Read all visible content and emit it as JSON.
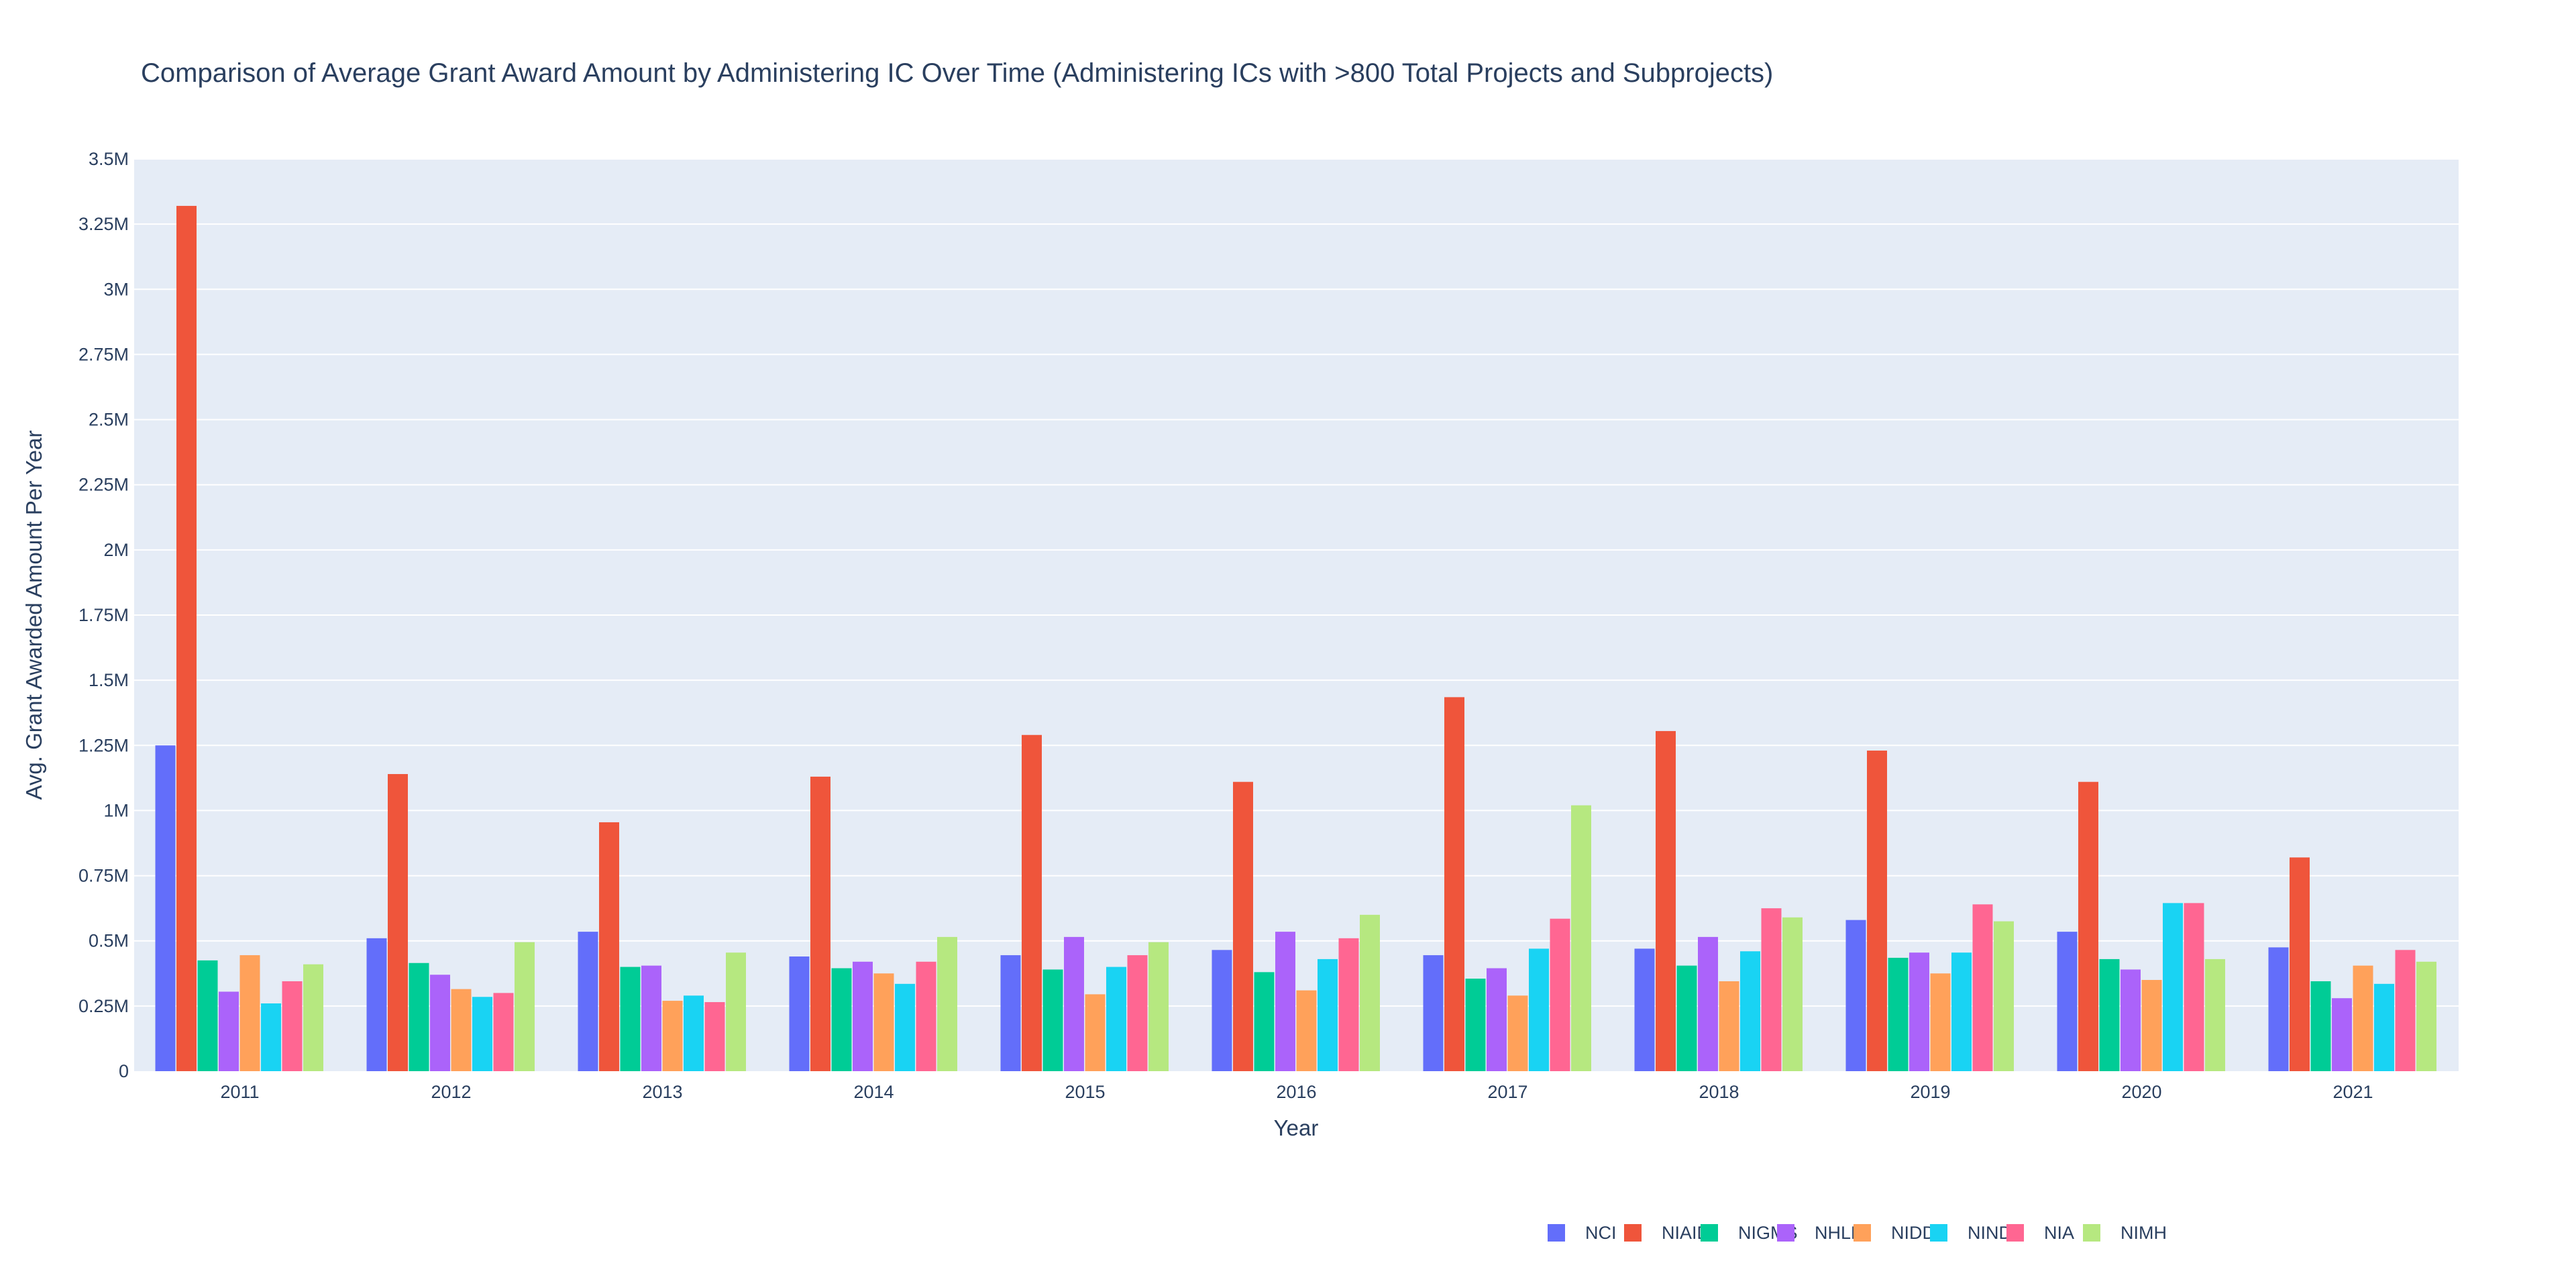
{
  "colors": {
    "plot_bg": "#e5ecf6",
    "grid": "#ffffff",
    "text": "#2a3f5f",
    "page_bg": "#ffffff"
  },
  "chart_data": {
    "type": "bar",
    "title": "Comparison of Average Grant Award Amount by Administering IC Over Time (Administering ICs with >800 Total Projects and Subprojects)",
    "xlabel": "Year",
    "ylabel": "Avg. Grant Awarded Amount Per Year",
    "ylim": [
      0,
      3500000
    ],
    "grid": true,
    "legend_position": "bottom-right",
    "categories": [
      "2011",
      "2012",
      "2013",
      "2014",
      "2015",
      "2016",
      "2017",
      "2018",
      "2019",
      "2020",
      "2021"
    ],
    "y_ticks": [
      {
        "value": 0,
        "label": "0"
      },
      {
        "value": 250000,
        "label": "0.25M"
      },
      {
        "value": 500000,
        "label": "0.5M"
      },
      {
        "value": 750000,
        "label": "0.75M"
      },
      {
        "value": 1000000,
        "label": "1M"
      },
      {
        "value": 1250000,
        "label": "1.25M"
      },
      {
        "value": 1500000,
        "label": "1.5M"
      },
      {
        "value": 1750000,
        "label": "1.75M"
      },
      {
        "value": 2000000,
        "label": "2M"
      },
      {
        "value": 2250000,
        "label": "2.25M"
      },
      {
        "value": 2500000,
        "label": "2.5M"
      },
      {
        "value": 2750000,
        "label": "2.75M"
      },
      {
        "value": 3000000,
        "label": "3M"
      },
      {
        "value": 3250000,
        "label": "3.25M"
      },
      {
        "value": 3500000,
        "label": "3.5M"
      }
    ],
    "series": [
      {
        "name": "NCI",
        "color": "#636efa",
        "values": [
          1250000,
          510000,
          535000,
          440000,
          445000,
          465000,
          445000,
          470000,
          580000,
          535000,
          475000
        ]
      },
      {
        "name": "NIAID",
        "color": "#EF553B",
        "values": [
          3320000,
          1140000,
          955000,
          1130000,
          1290000,
          1110000,
          1435000,
          1305000,
          1230000,
          1110000,
          820000
        ]
      },
      {
        "name": "NIGMS",
        "color": "#00cc96",
        "values": [
          425000,
          415000,
          400000,
          395000,
          390000,
          380000,
          355000,
          405000,
          435000,
          430000,
          345000
        ]
      },
      {
        "name": "NHLBI",
        "color": "#ab63fa",
        "values": [
          305000,
          370000,
          405000,
          420000,
          515000,
          535000,
          395000,
          515000,
          455000,
          390000,
          280000
        ]
      },
      {
        "name": "NIDDK",
        "color": "#FFA15A",
        "values": [
          445000,
          315000,
          270000,
          375000,
          295000,
          310000,
          290000,
          345000,
          375000,
          350000,
          405000
        ]
      },
      {
        "name": "NINDS",
        "color": "#19d3f3",
        "values": [
          260000,
          285000,
          290000,
          335000,
          400000,
          430000,
          470000,
          460000,
          455000,
          645000,
          335000
        ]
      },
      {
        "name": "NIA",
        "color": "#FF6692",
        "values": [
          345000,
          300000,
          265000,
          420000,
          445000,
          510000,
          585000,
          625000,
          640000,
          645000,
          465000
        ]
      },
      {
        "name": "NIMH",
        "color": "#B6E880",
        "values": [
          410000,
          495000,
          455000,
          515000,
          495000,
          600000,
          1020000,
          590000,
          575000,
          430000,
          420000
        ]
      }
    ]
  }
}
